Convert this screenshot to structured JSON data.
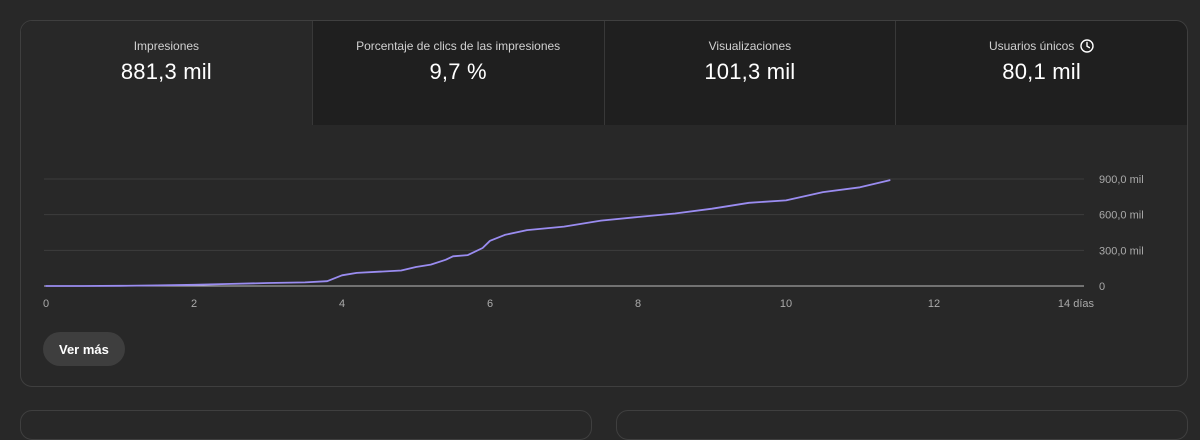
{
  "metrics": [
    {
      "label": "Impresiones",
      "value": "881,3 mil"
    },
    {
      "label": "Porcentaje de clics de las impresiones",
      "value": "9,7 %"
    },
    {
      "label": "Visualizaciones",
      "value": "101,3 mil"
    },
    {
      "label": "Usuarios únicos",
      "value": "80,1 mil",
      "icon": "clock-icon"
    }
  ],
  "more_button_label": "Ver más",
  "colors": {
    "line": "#9a8cf0",
    "background": "#282828",
    "tab_background": "#1f1f1f"
  },
  "chart_data": {
    "type": "line",
    "series": [
      {
        "x": [
          0,
          0.5,
          1,
          1.5,
          2,
          2.5,
          3,
          3.5,
          3.8,
          4,
          4.2,
          4.5,
          4.8,
          5,
          5.2,
          5.4,
          5.5,
          5.7,
          5.9,
          6,
          6.2,
          6.5,
          7,
          7.5,
          8,
          8.5,
          9,
          9.5,
          10,
          10.5,
          11,
          11.4
        ],
        "y": [
          0,
          0,
          2,
          5,
          10,
          18,
          25,
          30,
          40,
          90,
          110,
          120,
          130,
          160,
          180,
          220,
          250,
          260,
          320,
          380,
          430,
          470,
          500,
          550,
          580,
          610,
          650,
          700,
          720,
          790,
          830,
          890
        ]
      }
    ],
    "xlim": [
      0,
      14
    ],
    "ylim": [
      0,
      900
    ],
    "x_ticks": [
      {
        "value": 0,
        "label": "0"
      },
      {
        "value": 2,
        "label": "2"
      },
      {
        "value": 4,
        "label": "4"
      },
      {
        "value": 6,
        "label": "6"
      },
      {
        "value": 8,
        "label": "8"
      },
      {
        "value": 10,
        "label": "10"
      },
      {
        "value": 12,
        "label": "12"
      },
      {
        "value": 14,
        "label": "14 días"
      }
    ],
    "y_ticks": [
      {
        "value": 0,
        "label": "0"
      },
      {
        "value": 300,
        "label": "300,0 mil"
      },
      {
        "value": 600,
        "label": "600,0 mil"
      },
      {
        "value": 900,
        "label": "900,0 mil"
      }
    ],
    "grid": true
  }
}
